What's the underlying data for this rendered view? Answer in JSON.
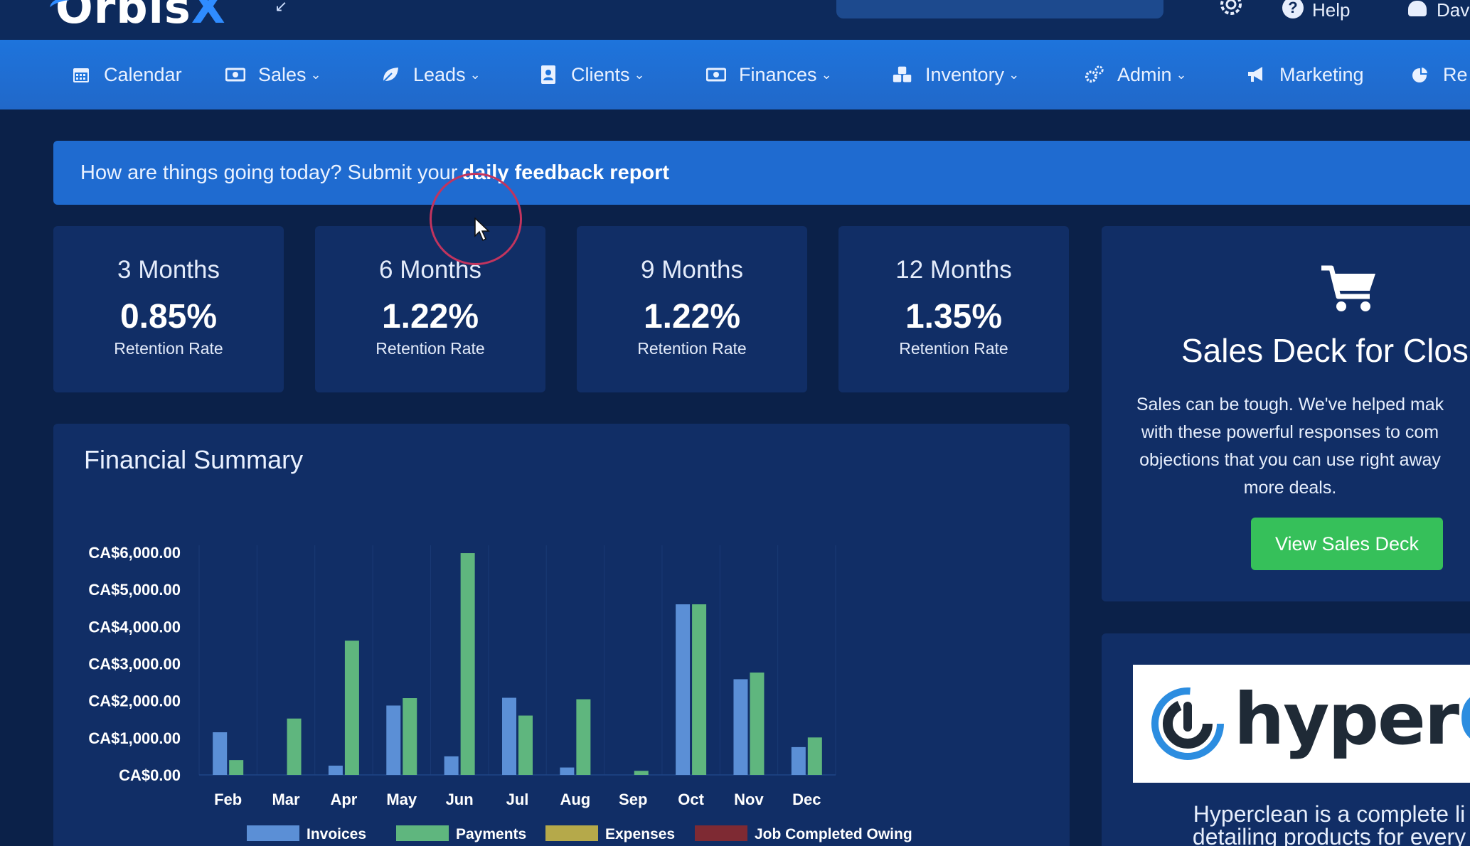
{
  "app": {
    "logo_text_main": "Orbis",
    "logo_text_accent": "X",
    "help_label": "Help",
    "user_label": "Dav"
  },
  "nav": {
    "items": [
      {
        "label": "Calendar",
        "icon": "calendar-icon",
        "has_dropdown": false
      },
      {
        "label": "Sales",
        "icon": "money-icon",
        "has_dropdown": true
      },
      {
        "label": "Leads",
        "icon": "leaf-icon",
        "has_dropdown": true
      },
      {
        "label": "Clients",
        "icon": "contact-book-icon",
        "has_dropdown": true
      },
      {
        "label": "Finances",
        "icon": "money-icon",
        "has_dropdown": true
      },
      {
        "label": "Inventory",
        "icon": "cubes-icon",
        "has_dropdown": true
      },
      {
        "label": "Admin",
        "icon": "cogs-icon",
        "has_dropdown": true
      },
      {
        "label": "Marketing",
        "icon": "megaphone-icon",
        "has_dropdown": false
      },
      {
        "label": "Re",
        "icon": "pie-chart-icon",
        "has_dropdown": false
      }
    ]
  },
  "banner": {
    "text": "How are things going today? Submit your",
    "link": "daily feedback report"
  },
  "retention_cards": [
    {
      "period": "3 Months",
      "rate": "0.85%",
      "label": "Retention Rate"
    },
    {
      "period": "6 Months",
      "rate": "1.22%",
      "label": "Retention Rate"
    },
    {
      "period": "9 Months",
      "rate": "1.22%",
      "label": "Retention Rate"
    },
    {
      "period": "12 Months",
      "rate": "1.35%",
      "label": "Retention Rate"
    }
  ],
  "financial_summary": {
    "title": "Financial Summary"
  },
  "chart_data": {
    "type": "bar",
    "categories": [
      "Feb",
      "Mar",
      "Apr",
      "May",
      "Jun",
      "Jul",
      "Aug",
      "Sep",
      "Oct",
      "Nov",
      "Dec"
    ],
    "y_ticks": [
      "CA$0.00",
      "CA$1,000.00",
      "CA$2,000.00",
      "CA$3,000.00",
      "CA$4,000.00",
      "CA$5,000.00",
      "CA$6,000.00"
    ],
    "ylim": [
      0,
      6000
    ],
    "grid": true,
    "legend_position": "bottom",
    "series": [
      {
        "name": "Invoices",
        "color": "#5b8fd6",
        "values": [
          1150,
          0,
          250,
          1870,
          500,
          2080,
          200,
          0,
          4600,
          2580,
          750
        ]
      },
      {
        "name": "Payments",
        "color": "#5fb67e",
        "values": [
          400,
          1520,
          3620,
          2070,
          5980,
          1600,
          2040,
          110,
          4600,
          2760,
          1010
        ]
      },
      {
        "name": "Expenses",
        "color": "#b5a94a",
        "values": [
          0,
          0,
          0,
          0,
          0,
          0,
          0,
          0,
          0,
          0,
          0
        ]
      },
      {
        "name": "Job Completed Owing",
        "color": "#7e2a33",
        "values": [
          0,
          0,
          0,
          0,
          0,
          0,
          0,
          0,
          0,
          0,
          0
        ]
      }
    ]
  },
  "sales_deck": {
    "title": "Sales Deck for Clos",
    "description_lines": [
      "Sales can be tough. We've helped mak",
      "with these powerful responses to com",
      "objections that you can use right away",
      "more deals."
    ],
    "button_label": "View Sales Deck",
    "button_color": "#36c05a"
  },
  "hyperclean": {
    "logo_text_dark": "hyper",
    "logo_text_blue": "CLE",
    "description_lines": [
      "Hyperclean is a complete li",
      "detailing products for every"
    ]
  },
  "colors": {
    "page_bg": "#0b2149",
    "panel_bg": "#112e66",
    "nav_bg": "#1e74dc",
    "banner_bg": "#1f6bd0",
    "accent_blue": "#2f8cff"
  }
}
